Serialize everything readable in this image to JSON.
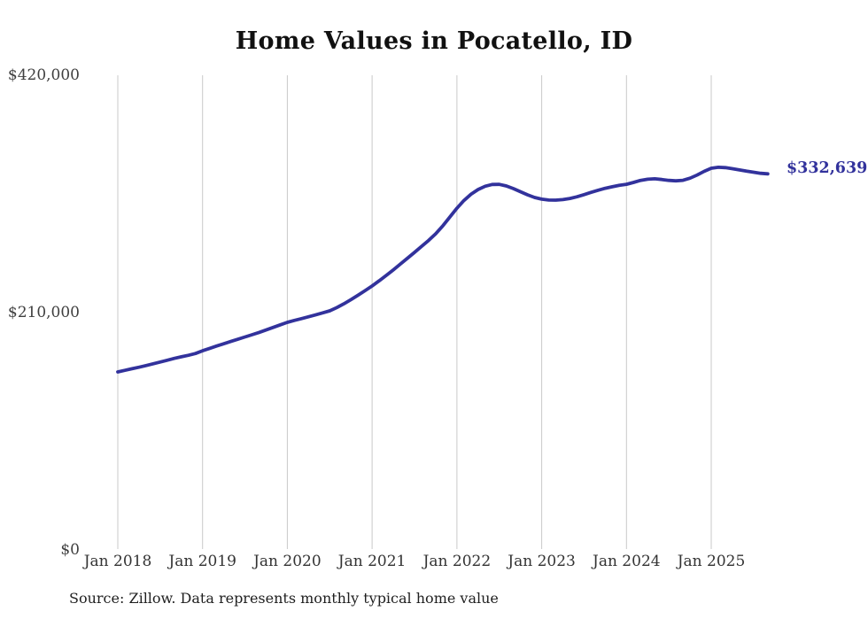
{
  "chart_data": {
    "type": "line",
    "title": "Home Values in Pocatello, ID",
    "source_note": "Source: Zillow. Data represents monthly typical home value",
    "end_label": "$332,639",
    "latest_value": 332639,
    "line_color": "#32329c",
    "grid_color": "#c9c9c9",
    "background_color": "#ffffff",
    "ylim": [
      0,
      420000
    ],
    "grid": "vertical-only",
    "legend": "none",
    "y_ticks": [
      "$420,000",
      "$210,000",
      "$0"
    ],
    "x_ticks": [
      "Jan 2018",
      "Jan 2019",
      "Jan 2020",
      "Jan 2021",
      "Jan 2022",
      "Jan 2023",
      "Jan 2024",
      "Jan 2025"
    ],
    "x_start_month": "Jan 2018",
    "x_end_month": "Sep 2025",
    "months_per_point": 1,
    "series": [
      {
        "name": "Typical home value",
        "values": [
          157000,
          158400,
          159800,
          161200,
          162700,
          164200,
          165800,
          167400,
          169000,
          170400,
          171800,
          173300,
          175800,
          177900,
          180000,
          182000,
          184000,
          186000,
          188000,
          190000,
          192000,
          194200,
          196500,
          198800,
          201000,
          202700,
          204300,
          205900,
          207600,
          209400,
          211200,
          214100,
          217400,
          221100,
          225000,
          229100,
          233200,
          237800,
          242600,
          247500,
          252600,
          257800,
          263000,
          268300,
          273700,
          279500,
          286500,
          294300,
          302200,
          309000,
          314600,
          318700,
          321600,
          323200,
          323300,
          321900,
          319500,
          316800,
          314000,
          311700,
          310200,
          309400,
          309300,
          309800,
          310800,
          312300,
          314200,
          316200,
          318100,
          319800,
          321200,
          322400,
          323400,
          325000,
          326800,
          327800,
          328200,
          327600,
          326800,
          326400,
          326900,
          328800,
          331500,
          334800,
          337600,
          338400,
          338100,
          337200,
          336100,
          335000,
          334000,
          333100,
          332639
        ]
      }
    ]
  }
}
